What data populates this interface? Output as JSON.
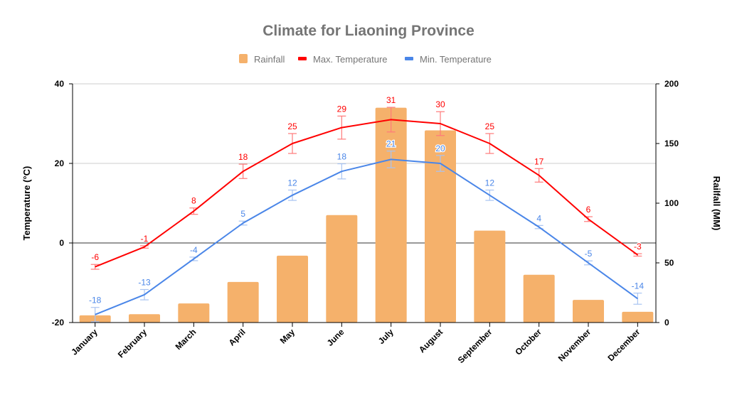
{
  "chart_data": {
    "type": "bar+line",
    "title": "Climate for Liaoning Province",
    "legend": {
      "position": "top",
      "entries": [
        "Rainfall",
        "Max. Temperature",
        "Min. Temperature"
      ]
    },
    "categories": [
      "January",
      "February",
      "March",
      "April",
      "May",
      "June",
      "July",
      "August",
      "September",
      "October",
      "November",
      "December"
    ],
    "y_left": {
      "label": "Temperature (°C)",
      "range": [
        -20,
        40
      ],
      "ticks": [
        "-20",
        "0",
        "20",
        "40"
      ]
    },
    "y_right": {
      "label": "Railfall (MM)",
      "range": [
        0,
        200
      ],
      "ticks": [
        "0",
        "50",
        "100",
        "150",
        "200"
      ]
    },
    "grid": true,
    "series": [
      {
        "name": "Rainfall",
        "type": "bar",
        "axis": "right",
        "color": "#f5b16b",
        "values": [
          6,
          7,
          16,
          34,
          56,
          90,
          180,
          161,
          77,
          40,
          19,
          9
        ]
      },
      {
        "name": "Max. Temperature",
        "type": "line",
        "axis": "left",
        "color": "#ff0000",
        "values": [
          -6,
          -1,
          8,
          18,
          25,
          29,
          31,
          30,
          25,
          17,
          6,
          -3
        ],
        "labels": [
          "-6",
          "-1",
          "8",
          "18",
          "25",
          "29",
          "31",
          "30",
          "25",
          "17",
          "6",
          "-3"
        ],
        "error": [
          0.6,
          0.3,
          0.8,
          1.8,
          2.5,
          2.9,
          3.1,
          3.0,
          2.5,
          1.7,
          0.6,
          0.3
        ]
      },
      {
        "name": "Min. Temperature",
        "type": "line",
        "axis": "left",
        "color": "#4a86e8",
        "values": [
          -18,
          -13,
          -4,
          5,
          12,
          18,
          21,
          20,
          12,
          4,
          -5,
          -14
        ],
        "labels": [
          "-18",
          "-13",
          "-4",
          "5",
          "12",
          "18",
          "21",
          "20",
          "12",
          "4",
          "-5",
          "-14"
        ],
        "error": [
          1.8,
          1.3,
          0.45,
          0.5,
          1.3,
          1.9,
          2.1,
          2.0,
          1.3,
          0.4,
          0.5,
          1.4
        ]
      }
    ]
  }
}
